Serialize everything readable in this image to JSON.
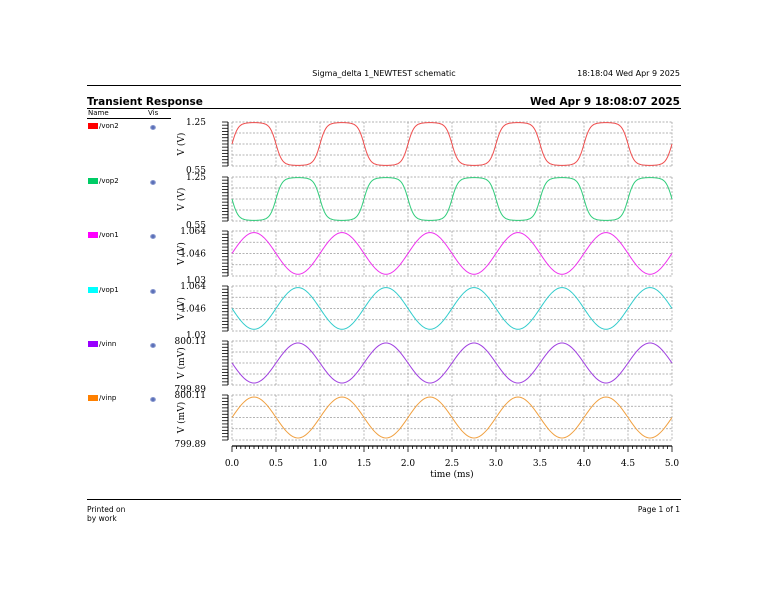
{
  "header": {
    "schematic_title": "Sigma_delta 1_NEWTEST schematic",
    "timestamp": "18:18:04  Wed Apr 9 2025"
  },
  "section": {
    "title": "Transient Response",
    "date": "Wed Apr 9 18:08:07 2025"
  },
  "legend": {
    "col_name": "Name",
    "col_vis": "Vis",
    "items": [
      {
        "name": "/von2",
        "color": "#ff0000",
        "vis_icon": "eye-icon"
      },
      {
        "name": "/vop2",
        "color": "#00cc66",
        "vis_icon": "eye-icon"
      },
      {
        "name": "/von1",
        "color": "#ff00ff",
        "vis_icon": "eye-icon"
      },
      {
        "name": "/vop1",
        "color": "#00ffff",
        "vis_icon": "eye-icon"
      },
      {
        "name": "/vinn",
        "color": "#9900ff",
        "vis_icon": "eye-icon"
      },
      {
        "name": "/vinp",
        "color": "#ff8000",
        "vis_icon": "eye-icon"
      }
    ]
  },
  "footer": {
    "printed_on": "Printed on",
    "by": "by work",
    "page": "Page 1 of 1"
  },
  "chart_data": {
    "type": "line",
    "title": "Transient Response",
    "xlabel": "time (ms)",
    "xlim": [
      0.0,
      5.0
    ],
    "xticks": [
      "0.0",
      "0.5",
      "1.0",
      "1.5",
      "2.0",
      "2.5",
      "3.0",
      "3.5",
      "4.0",
      "4.5",
      "5.0"
    ],
    "grid": true,
    "legend_position": "left",
    "series": [
      {
        "name": "/von2",
        "color": "#ef4b4b",
        "ylabel": "V (V)",
        "ylim": [
          0.55,
          1.25
        ],
        "yticks": [
          "1.25",
          "0.55"
        ],
        "shape": "soft-square",
        "period_ms": 1.0,
        "phase_peak_ms": 0.25,
        "min": 0.56,
        "max": 1.24
      },
      {
        "name": "/vop2",
        "color": "#2ecc7a",
        "ylabel": "V (V)",
        "ylim": [
          0.55,
          1.25
        ],
        "yticks": [
          "1.25",
          "0.55"
        ],
        "shape": "soft-square",
        "period_ms": 1.0,
        "phase_peak_ms": 0.75,
        "min": 0.56,
        "max": 1.24
      },
      {
        "name": "/von1",
        "color": "#ee33ee",
        "ylabel": "V (V)",
        "ylim": [
          1.03,
          1.064
        ],
        "yticks": [
          "1.064",
          "1.046",
          "1.03"
        ],
        "shape": "sine",
        "period_ms": 1.0,
        "phase_peak_ms": 0.25,
        "min": 1.0313,
        "max": 1.0628
      },
      {
        "name": "/vop1",
        "color": "#33cccc",
        "ylabel": "V (V)",
        "ylim": [
          1.03,
          1.064
        ],
        "yticks": [
          "1.064",
          "1.046",
          "1.03"
        ],
        "shape": "sine",
        "period_ms": 1.0,
        "phase_peak_ms": 0.75,
        "min": 1.0313,
        "max": 1.0628
      },
      {
        "name": "/vinn",
        "color": "#a040e0",
        "ylabel": "V (mV)",
        "ylim": [
          799.89,
          800.11
        ],
        "yticks": [
          "800.11",
          "799.89"
        ],
        "shape": "sine",
        "period_ms": 1.0,
        "phase_peak_ms": 0.75,
        "min": 799.9,
        "max": 800.1
      },
      {
        "name": "/vinp",
        "color": "#f0a040",
        "ylabel": "V (mV)",
        "ylim": [
          799.89,
          800.11
        ],
        "yticks": [
          "800.11",
          "799.89"
        ],
        "shape": "sine",
        "period_ms": 1.0,
        "phase_peak_ms": 0.25,
        "min": 799.9,
        "max": 800.1
      }
    ]
  }
}
